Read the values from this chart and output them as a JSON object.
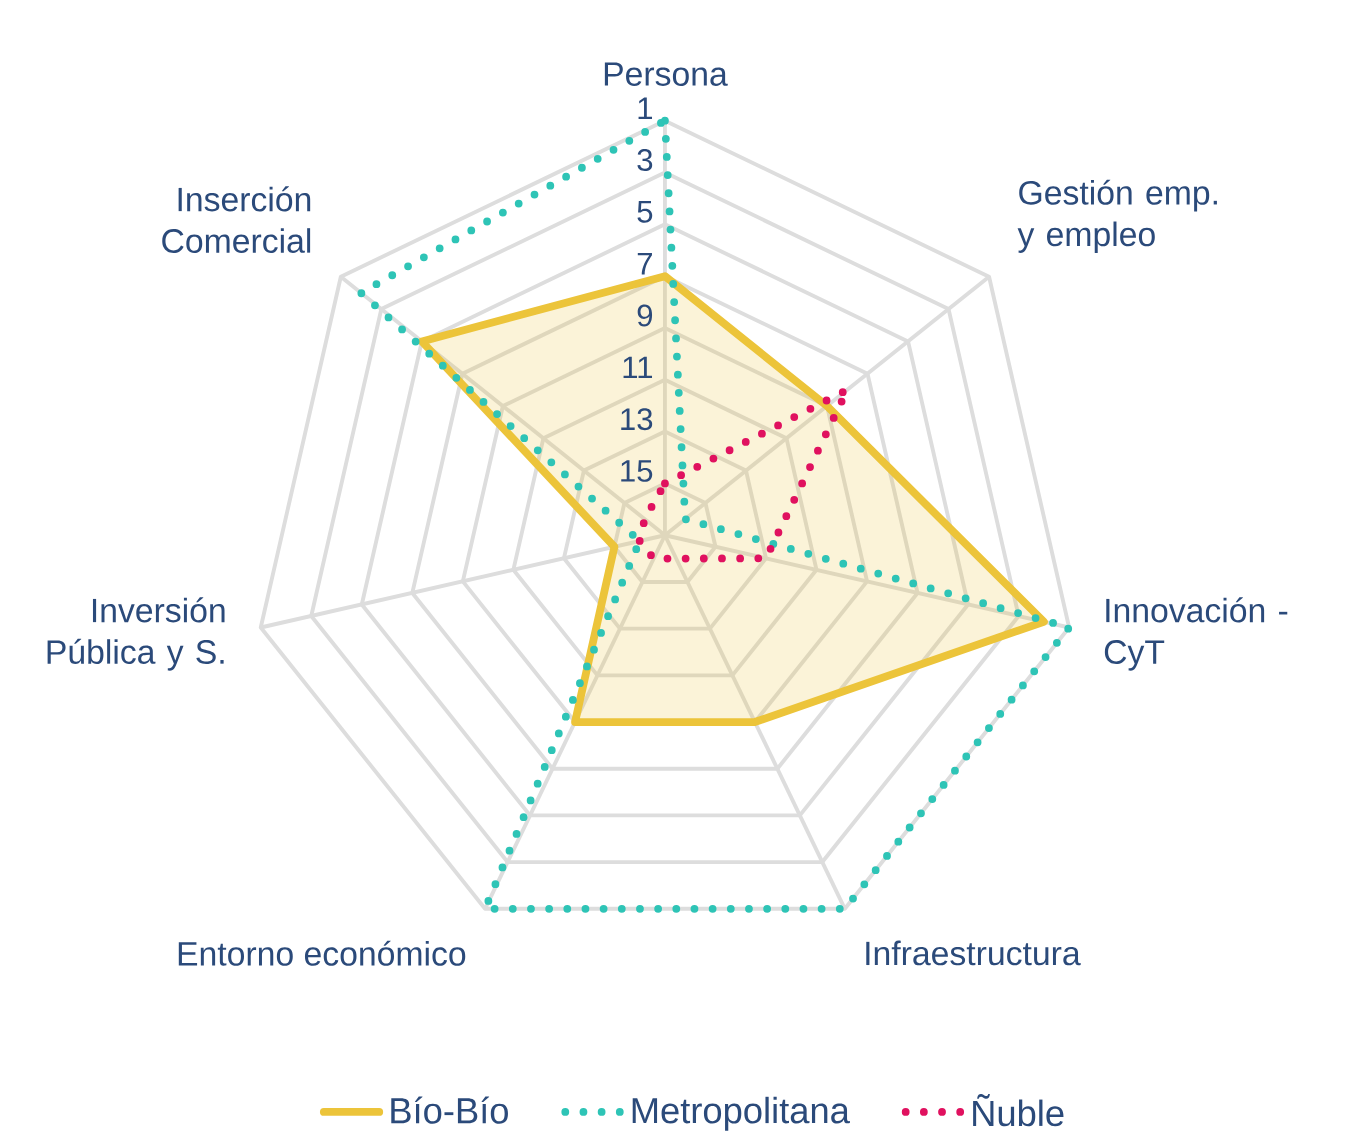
{
  "chart_data": {
    "type": "radar",
    "categories": [
      "Persona",
      "Gestión emp. y empleo",
      "Innovación - CyT",
      "Infraestructura",
      "Entorno económico",
      "Inversión Pública y S.",
      "Inserción Comercial"
    ],
    "ylim": [
      17,
      1
    ],
    "yticks": [
      1,
      3,
      5,
      7,
      9,
      11,
      13,
      15
    ],
    "grid": true,
    "legend": "bottom",
    "marker": "none",
    "series": [
      {
        "name": "Bío-Bío",
        "color": "#ecc43a",
        "line_style": "solid",
        "values": [
          7,
          9,
          2,
          9,
          9,
          15,
          5
        ]
      },
      {
        "name": "Metropolitana",
        "color": "#2ec4b6",
        "line_style": "dotted",
        "values": [
          1,
          16,
          1,
          1,
          1,
          16,
          2
        ]
      },
      {
        "name": "Ñuble",
        "color": "#e0115f",
        "line_style": "dotted",
        "values": [
          15,
          8,
          13,
          16,
          16,
          16,
          16
        ]
      }
    ]
  }
}
